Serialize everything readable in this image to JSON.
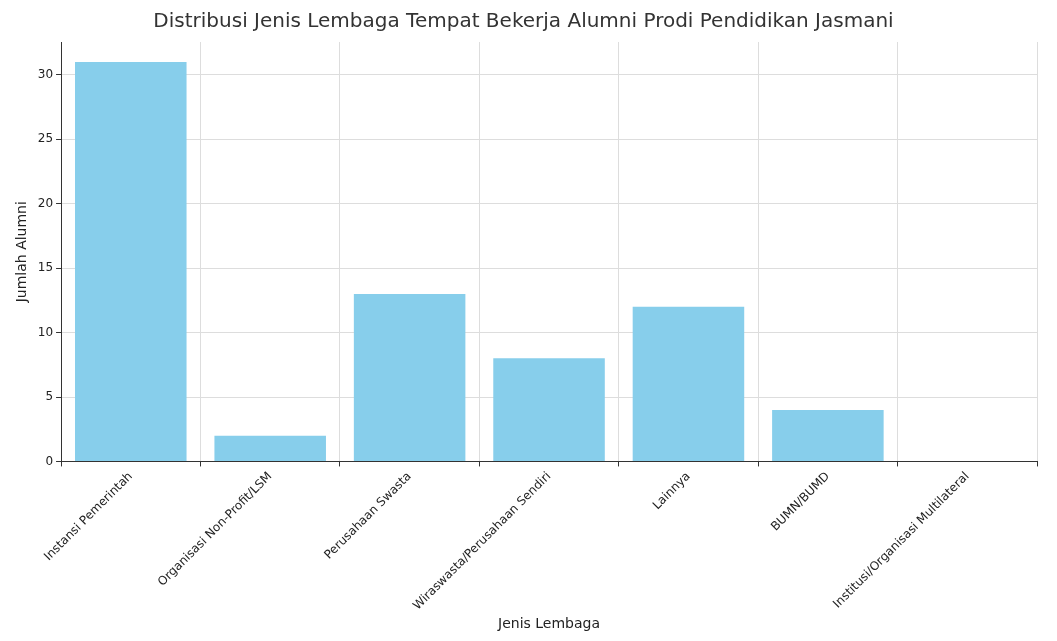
{
  "chart_data": {
    "type": "bar",
    "title": "Distribusi Jenis Lembaga Tempat Bekerja Alumni Prodi Pendidikan Jasmani",
    "xlabel": "Jenis Lembaga",
    "ylabel": "Jumlah Alumni",
    "categories": [
      "Instansi Pemerintah",
      "Organisasi Non-Profit/LSM",
      "Perusahaan Swasta",
      "Wiraswasta/Perusahaan Sendiri",
      "Lainnya",
      "BUMN/BUMD",
      "Institusi/Organisasi Multilateral"
    ],
    "values": [
      31,
      2,
      13,
      8,
      12,
      4,
      0
    ],
    "color": "#87ceeb",
    "ylim": [
      0,
      32.55
    ],
    "yticks": [
      0,
      5,
      10,
      15,
      20,
      25,
      30
    ],
    "grid": true
  }
}
